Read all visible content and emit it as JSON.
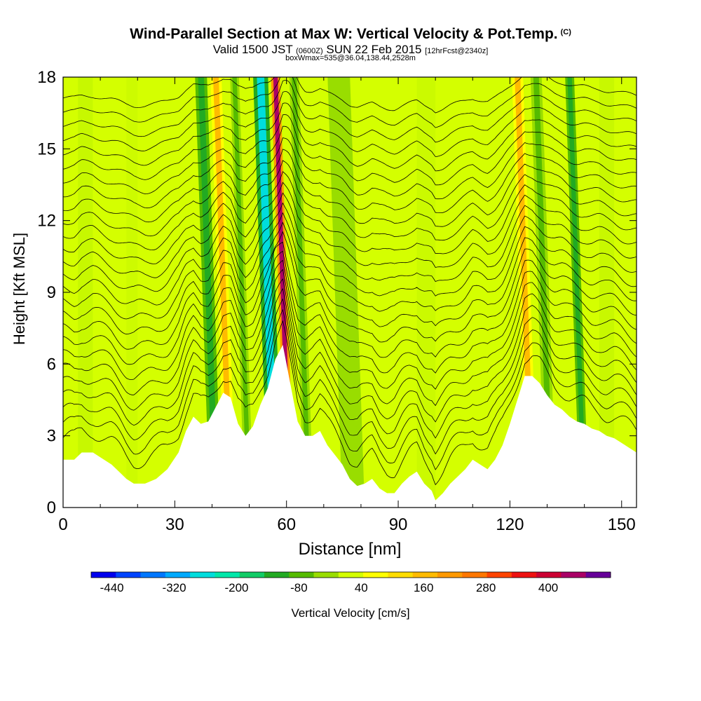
{
  "header": {
    "title": "Wind-Parallel Section at Max W: Vertical Velocity & Pot.Temp.",
    "title_mark": "(C)",
    "valid_prefix": "Valid 1500 JST",
    "valid_zulu": "(0600Z)",
    "valid_date": "SUN 22 Feb 2015",
    "fcst": "[12hrFcst@2340z]",
    "boxwmax": "boxWmax=535@36.04,138.44,2528m"
  },
  "chart_data": {
    "type": "contour-cross-section",
    "xlabel": "Distance [nm]",
    "ylabel": "Height [Kft MSL]",
    "xlim": [
      0,
      154
    ],
    "ylim": [
      0,
      18
    ],
    "x_ticks": [
      0,
      30,
      60,
      90,
      120,
      150
    ],
    "y_ticks": [
      0,
      3,
      6,
      9,
      12,
      15,
      18
    ],
    "terrain": {
      "x": [
        0,
        3,
        5,
        8,
        11,
        13,
        15,
        17,
        19,
        22,
        25,
        28,
        31,
        33,
        35,
        37,
        39,
        41,
        43,
        45,
        47,
        49,
        51,
        53,
        55,
        57,
        59,
        61,
        63,
        65,
        67,
        69,
        71,
        73,
        75,
        77,
        79,
        81,
        83,
        85,
        87,
        89,
        91,
        93,
        95,
        97,
        99,
        100,
        102,
        104,
        106,
        108,
        110,
        112,
        114,
        116,
        118,
        120,
        122,
        124,
        126,
        128,
        130,
        132,
        134,
        136,
        138,
        140,
        142,
        144,
        146,
        148,
        150,
        152,
        154
      ],
      "height_kft": [
        2.0,
        2.0,
        2.3,
        2.3,
        2.0,
        1.8,
        1.5,
        1.2,
        1.0,
        1.0,
        1.2,
        1.6,
        2.3,
        3.2,
        3.8,
        3.5,
        3.6,
        4.2,
        4.8,
        4.6,
        3.5,
        3.0,
        3.4,
        4.3,
        5.0,
        6.2,
        6.8,
        5.2,
        3.6,
        3.0,
        3.0,
        3.2,
        2.6,
        2.2,
        1.8,
        1.2,
        0.9,
        1.0,
        1.2,
        0.8,
        0.6,
        0.6,
        1.0,
        1.3,
        1.5,
        1.0,
        0.7,
        0.3,
        0.6,
        1.0,
        1.3,
        1.6,
        2.0,
        1.8,
        1.6,
        2.0,
        2.6,
        3.5,
        4.5,
        5.5,
        5.5,
        5.2,
        4.7,
        4.3,
        4.1,
        3.8,
        3.6,
        3.5,
        3.3,
        3.2,
        3.0,
        2.9,
        2.7,
        2.5,
        2.3
      ]
    },
    "vertical_velocity_bands": [
      {
        "x": 41,
        "half_width_nm": 1.6,
        "w_cms": -110
      },
      {
        "x": 45,
        "half_width_nm": 1.5,
        "w_cms": 160
      },
      {
        "x": 50,
        "half_width_nm": 1.2,
        "w_cms": -60
      },
      {
        "x": 57,
        "half_width_nm": 2.0,
        "w_cms": -250
      },
      {
        "x": 61,
        "half_width_nm": 1.2,
        "w_cms": 460
      },
      {
        "x": 66,
        "half_width_nm": 1.3,
        "w_cms": -90
      },
      {
        "x": 78,
        "half_width_nm": 3.0,
        "w_cms": -30
      },
      {
        "x": 126,
        "half_width_nm": 1.5,
        "w_cms": 140
      },
      {
        "x": 131,
        "half_width_nm": 1.5,
        "w_cms": -70
      },
      {
        "x": 140,
        "half_width_nm": 1.2,
        "w_cms": -110
      }
    ],
    "potential_temperature_contours": {
      "count": 26,
      "spacing_kft": 0.62
    },
    "colorbar": {
      "label": "Vertical Velocity [cm/s]",
      "tick_labels": [
        "-440",
        "-320",
        "-200",
        "-80",
        "40",
        "160",
        "280",
        "400"
      ],
      "range": [
        -480,
        520
      ],
      "colors": [
        "#0000ee",
        "#0044ff",
        "#0077ff",
        "#00aaff",
        "#00dddd",
        "#00e8aa",
        "#11cc66",
        "#22aa22",
        "#55bb00",
        "#99dd00",
        "#d4ff00",
        "#ffff00",
        "#ffdd00",
        "#ffbb00",
        "#ff9900",
        "#ff7700",
        "#ff4400",
        "#ee1111",
        "#cc0033",
        "#aa0066",
        "#660099"
      ]
    }
  }
}
